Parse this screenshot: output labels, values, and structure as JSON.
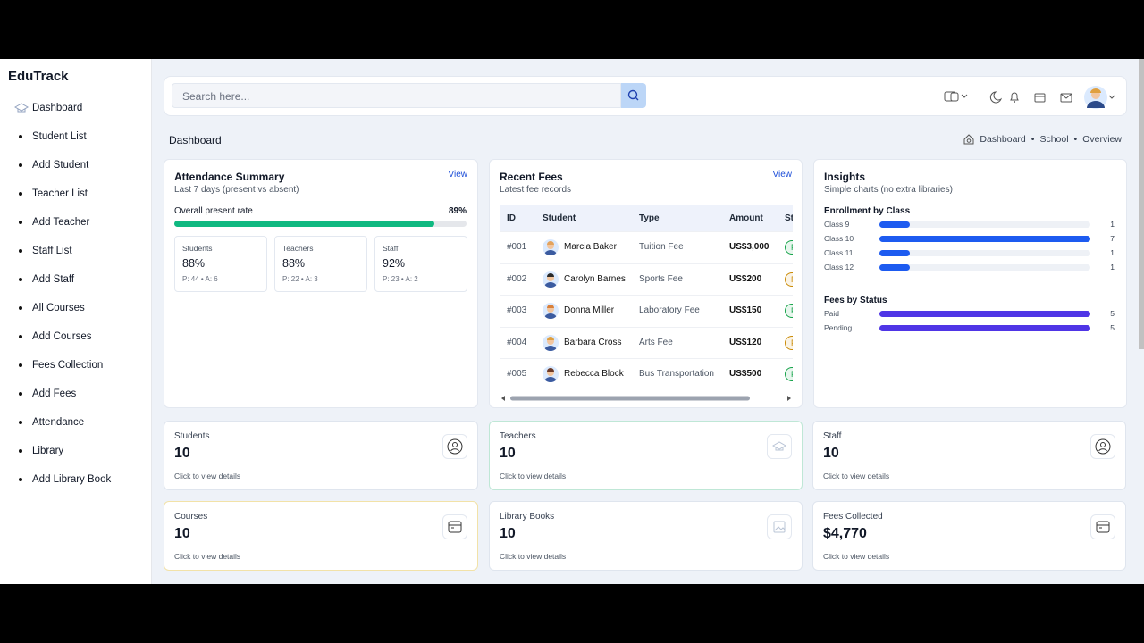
{
  "sidebar": {
    "brand": "EduTrack",
    "items": [
      "Dashboard",
      "Student List",
      "Add Student",
      "Teacher List",
      "Add Teacher",
      "Staff List",
      "Add Staff",
      "All Courses",
      "Add Courses",
      "Fees Collection",
      "Add Fees",
      "Attendance",
      "Library",
      "Add Library Book"
    ]
  },
  "search": {
    "placeholder": "Search here..."
  },
  "breadcrumb": {
    "title": "Dashboard",
    "trail": [
      "Dashboard",
      "School",
      "Overview"
    ]
  },
  "attendance": {
    "title": "Attendance Summary",
    "subtitle": "Last 7 days (present vs absent)",
    "link": "View",
    "rate_label": "Overall present rate",
    "rate": 89,
    "rate_text": "89%",
    "bar_color": "#10b981",
    "groups": [
      {
        "name": "Students",
        "percent": "88%",
        "detail": "P: 44 • A: 6"
      },
      {
        "name": "Teachers",
        "percent": "88%",
        "detail": "P: 22 • A: 3"
      },
      {
        "name": "Staff",
        "percent": "92%",
        "detail": "P: 23 • A: 2"
      }
    ]
  },
  "fees": {
    "title": "Recent Fees",
    "subtitle": "Latest fee records",
    "link": "View",
    "columns": [
      "ID",
      "Student",
      "Type",
      "Amount",
      "Status"
    ],
    "rows": [
      [
        "#001",
        "Marcia Baker",
        "Tuition Fee",
        "US$3,000",
        "Paid"
      ],
      [
        "#002",
        "Carolyn Barnes",
        "Sports Fee",
        "US$200",
        "Pending"
      ],
      [
        "#003",
        "Donna Miller",
        "Laboratory Fee",
        "US$150",
        "Paid"
      ],
      [
        "#004",
        "Barbara Cross",
        "Arts Fee",
        "US$120",
        "Pending"
      ],
      [
        "#005",
        "Rebecca Block",
        "Bus Transportation",
        "US$500",
        "Paid"
      ]
    ],
    "status_colors": {
      "Paid": "#16a34a",
      "Pending": "#ca8a04"
    }
  },
  "insights": {
    "title": "Insights",
    "subtitle": "Simple charts (no extra libraries)",
    "charts": [
      {
        "title": "Enrollment by Class",
        "color": "#1d5bf0",
        "categories": [
          "Class 9",
          "Class 10",
          "Class 11",
          "Class 12"
        ],
        "values": [
          1,
          7,
          1,
          1
        ]
      },
      {
        "title": "Fees by Status",
        "color": "#4f35e6",
        "categories": [
          "Paid",
          "Pending"
        ],
        "values": [
          5,
          5
        ]
      }
    ]
  },
  "stats": [
    {
      "label": "Students",
      "value": 10,
      "hint": "Click to view details"
    },
    {
      "label": "Teachers",
      "value": 10,
      "hint": "Click to view details"
    },
    {
      "label": "Staff",
      "value": 10,
      "hint": "Click to view details"
    },
    {
      "label": "Courses",
      "value": 10,
      "hint": "Click to view details"
    },
    {
      "label": "Library Books",
      "value": 10,
      "hint": "Click to view details"
    },
    {
      "label": "Fees Collected",
      "value": "$4,770",
      "hint": "Click to view details"
    }
  ]
}
